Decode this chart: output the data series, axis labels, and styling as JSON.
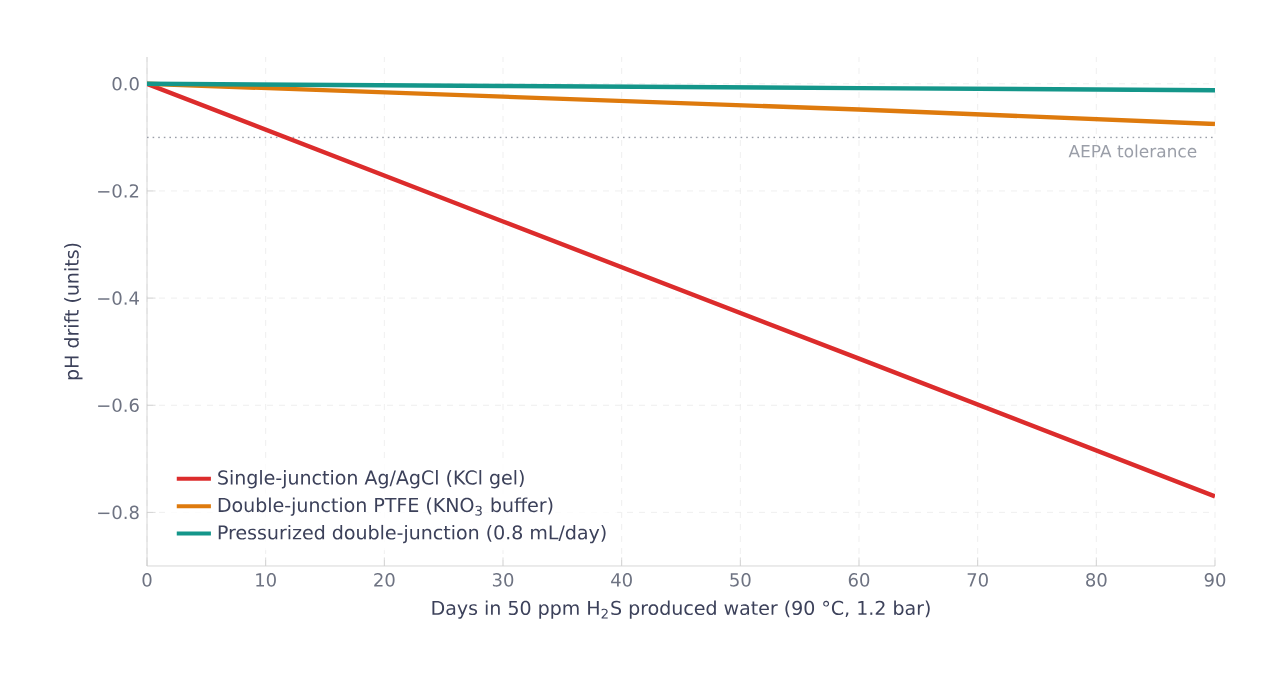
{
  "chart_data": {
    "type": "line",
    "xlabel": "Days in 50 ppm H$_{2}$S produced water (90 °C, 1.2 bar)",
    "ylabel": "pH drift (units)",
    "xlim": [
      0,
      90
    ],
    "ylim": [
      -0.9,
      0.05
    ],
    "xticks": [
      0,
      10,
      20,
      30,
      40,
      50,
      60,
      70,
      80,
      90
    ],
    "yticks": [
      {
        "value": 0,
        "label": "0.0"
      },
      {
        "value": -0.2,
        "label": "−0.2"
      },
      {
        "value": -0.4,
        "label": "−0.4"
      },
      {
        "value": -0.6,
        "label": "−0.6"
      },
      {
        "value": -0.8,
        "label": "−0.8"
      }
    ],
    "x": [
      0,
      30,
      60,
      90
    ],
    "series": [
      {
        "name": "Single-junction Ag/AgCl (KCl gel)",
        "color": "#dc2c2c",
        "values": [
          0,
          -0.257,
          -0.513,
          -0.77
        ]
      },
      {
        "name": "Double-junction PTFE (KNO$_{3}$ buffer)",
        "color": "#de7a0d",
        "values": [
          0,
          -0.024,
          -0.048,
          -0.075
        ]
      },
      {
        "name": "Pressurized double-junction (0.8 mL/day)",
        "color": "#14968a",
        "values": [
          0,
          -0.004,
          -0.008,
          -0.012
        ]
      }
    ],
    "ref_lines": [
      {
        "axis": "y",
        "value": -0.1,
        "label": "AEPA tolerance",
        "color": "#9a9ea8",
        "line_style": "dotted"
      }
    ],
    "grid": true,
    "legend": "bottom left",
    "marker": "none",
    "line_style": "solid"
  }
}
